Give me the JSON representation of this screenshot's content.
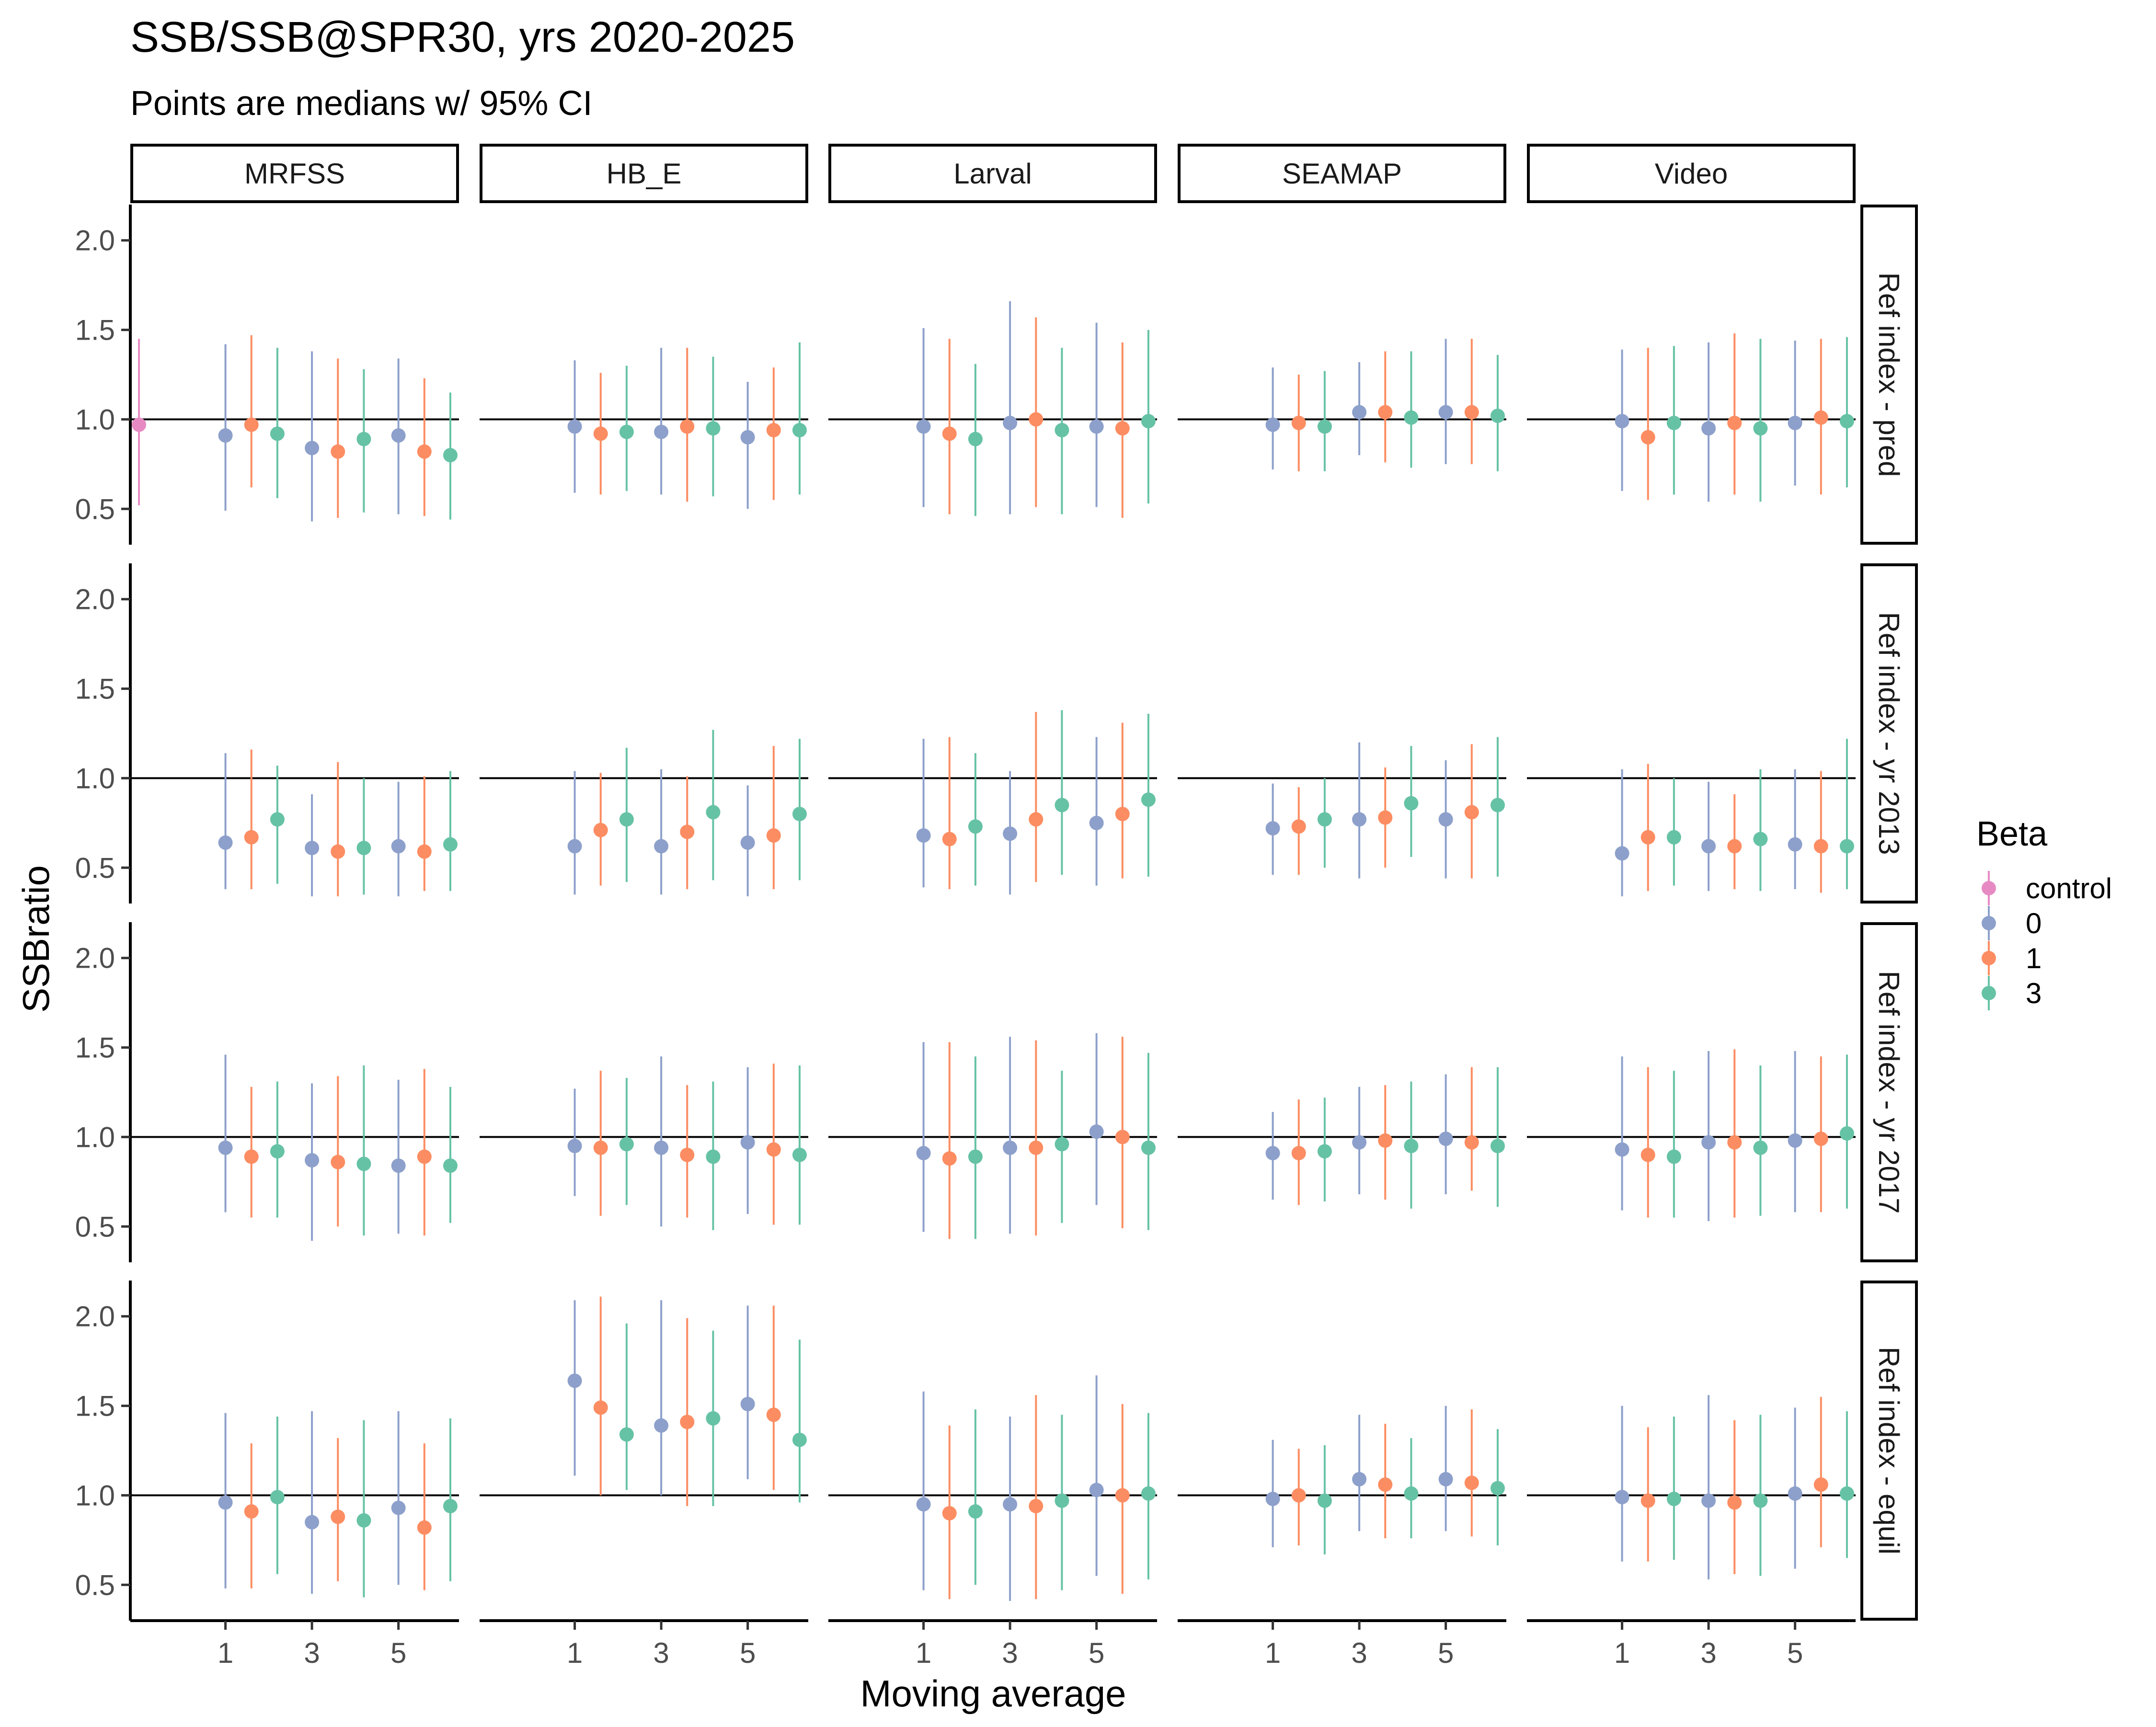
{
  "chart_data": {
    "type": "scatter",
    "title": "SSB/SSB@SPR30, yrs 2020-2025",
    "subtitle": "Points are medians w/ 95% CI",
    "xlabel": "Moving average",
    "ylabel": "SSBratio",
    "x_ticks": [
      "1",
      "3",
      "5"
    ],
    "y_ticks": [
      "0.5",
      "1.0",
      "1.5",
      "2.0"
    ],
    "ylim": [
      0.3,
      2.2
    ],
    "reference_line": 1.0,
    "columns": [
      "MRFSS",
      "HB_E",
      "Larval",
      "SEAMAP",
      "Video"
    ],
    "rows": [
      "Ref index - pred",
      "Ref index - yr 2013",
      "Ref index - yr 2017",
      "Ref index - equil"
    ],
    "legend": {
      "title": "Beta",
      "entries": [
        {
          "label": "control",
          "color": "#E78AC3"
        },
        {
          "label": "0",
          "color": "#8DA0CB"
        },
        {
          "label": "1",
          "color": "#FC8D62"
        },
        {
          "label": "3",
          "color": "#66C2A5"
        }
      ]
    },
    "groups": [
      "control",
      "1-0",
      "1-1",
      "1-3",
      "3-0",
      "3-1",
      "3-3",
      "5-0",
      "5-1",
      "5-3"
    ],
    "panels": [
      [
        {
          "median": [
            0.97,
            0.91,
            0.97,
            0.92,
            0.84,
            0.82,
            0.89,
            0.91,
            0.82,
            0.8
          ],
          "lower": [
            0.52,
            0.49,
            0.62,
            0.56,
            0.43,
            0.45,
            0.48,
            0.47,
            0.46,
            0.44
          ],
          "upper": [
            1.45,
            1.42,
            1.47,
            1.4,
            1.38,
            1.34,
            1.28,
            1.34,
            1.23,
            1.15
          ]
        },
        {
          "median": [
            null,
            0.96,
            0.92,
            0.93,
            0.93,
            0.96,
            0.95,
            0.9,
            0.94,
            0.94
          ],
          "lower": [
            null,
            0.59,
            0.58,
            0.6,
            0.58,
            0.54,
            0.57,
            0.5,
            0.55,
            0.58
          ],
          "upper": [
            null,
            1.33,
            1.26,
            1.3,
            1.4,
            1.4,
            1.35,
            1.21,
            1.29,
            1.43
          ]
        },
        {
          "median": [
            null,
            0.96,
            0.92,
            0.89,
            0.98,
            1.0,
            0.94,
            0.96,
            0.95,
            0.99
          ],
          "lower": [
            null,
            0.51,
            0.47,
            0.46,
            0.47,
            0.51,
            0.47,
            0.51,
            0.45,
            0.53
          ],
          "upper": [
            null,
            1.51,
            1.45,
            1.31,
            1.66,
            1.57,
            1.4,
            1.54,
            1.43,
            1.5
          ]
        },
        {
          "median": [
            null,
            0.97,
            0.98,
            0.96,
            1.04,
            1.04,
            1.01,
            1.04,
            1.04,
            1.02
          ],
          "lower": [
            null,
            0.72,
            0.71,
            0.71,
            0.8,
            0.76,
            0.73,
            0.75,
            0.75,
            0.71
          ],
          "upper": [
            null,
            1.29,
            1.25,
            1.27,
            1.32,
            1.38,
            1.38,
            1.45,
            1.45,
            1.36
          ]
        },
        {
          "median": [
            null,
            0.99,
            0.9,
            0.98,
            0.95,
            0.98,
            0.95,
            0.98,
            1.01,
            0.99
          ],
          "lower": [
            null,
            0.6,
            0.55,
            0.58,
            0.54,
            0.58,
            0.54,
            0.63,
            0.58,
            0.62
          ],
          "upper": [
            null,
            1.39,
            1.4,
            1.41,
            1.43,
            1.48,
            1.45,
            1.44,
            1.45,
            1.46
          ]
        }
      ],
      [
        {
          "median": [
            null,
            0.64,
            0.67,
            0.77,
            0.61,
            0.59,
            0.61,
            0.62,
            0.59,
            0.63
          ],
          "lower": [
            null,
            0.38,
            0.38,
            0.41,
            0.34,
            0.34,
            0.35,
            0.34,
            0.37,
            0.37
          ],
          "upper": [
            null,
            1.14,
            1.16,
            1.07,
            0.91,
            1.09,
            1.0,
            0.98,
            1.01,
            1.04
          ]
        },
        {
          "median": [
            null,
            0.62,
            0.71,
            0.77,
            0.62,
            0.7,
            0.81,
            0.64,
            0.68,
            0.8
          ],
          "lower": [
            null,
            0.35,
            0.4,
            0.42,
            0.35,
            0.38,
            0.43,
            0.34,
            0.38,
            0.43
          ],
          "upper": [
            null,
            1.04,
            1.03,
            1.17,
            1.05,
            1.01,
            1.27,
            0.96,
            1.18,
            1.22
          ]
        },
        {
          "median": [
            null,
            0.68,
            0.66,
            0.73,
            0.69,
            0.77,
            0.85,
            0.75,
            0.8,
            0.88
          ],
          "lower": [
            null,
            0.39,
            0.38,
            0.4,
            0.35,
            0.42,
            0.46,
            0.4,
            0.44,
            0.45
          ],
          "upper": [
            null,
            1.22,
            1.23,
            1.14,
            1.04,
            1.37,
            1.38,
            1.23,
            1.31,
            1.36
          ]
        },
        {
          "median": [
            null,
            0.72,
            0.73,
            0.77,
            0.77,
            0.78,
            0.86,
            0.77,
            0.81,
            0.85
          ],
          "lower": [
            null,
            0.46,
            0.46,
            0.5,
            0.44,
            0.5,
            0.56,
            0.44,
            0.44,
            0.45
          ],
          "upper": [
            null,
            0.97,
            0.95,
            1.0,
            1.2,
            1.06,
            1.18,
            1.1,
            1.19,
            1.23
          ]
        },
        {
          "median": [
            null,
            0.58,
            0.67,
            0.67,
            0.62,
            0.62,
            0.66,
            0.63,
            0.62,
            0.62
          ],
          "lower": [
            null,
            0.34,
            0.37,
            0.4,
            0.37,
            0.38,
            0.37,
            0.38,
            0.36,
            0.38
          ],
          "upper": [
            null,
            1.05,
            1.08,
            1.0,
            0.98,
            0.91,
            1.05,
            1.05,
            1.04,
            1.22
          ]
        }
      ],
      [
        {
          "median": [
            null,
            0.94,
            0.89,
            0.92,
            0.87,
            0.86,
            0.85,
            0.84,
            0.89,
            0.84
          ],
          "lower": [
            null,
            0.58,
            0.55,
            0.55,
            0.42,
            0.5,
            0.45,
            0.46,
            0.45,
            0.52
          ],
          "upper": [
            null,
            1.46,
            1.28,
            1.31,
            1.3,
            1.34,
            1.4,
            1.32,
            1.38,
            1.28
          ]
        },
        {
          "median": [
            null,
            0.95,
            0.94,
            0.96,
            0.94,
            0.9,
            0.89,
            0.97,
            0.93,
            0.9
          ],
          "lower": [
            null,
            0.67,
            0.56,
            0.62,
            0.5,
            0.55,
            0.48,
            0.57,
            0.51,
            0.51
          ],
          "upper": [
            null,
            1.27,
            1.37,
            1.33,
            1.45,
            1.29,
            1.31,
            1.39,
            1.41,
            1.4
          ]
        },
        {
          "median": [
            null,
            0.91,
            0.88,
            0.89,
            0.94,
            0.94,
            0.96,
            1.03,
            1.0,
            0.94
          ],
          "lower": [
            null,
            0.47,
            0.43,
            0.43,
            0.46,
            0.45,
            0.52,
            0.62,
            0.49,
            0.48
          ],
          "upper": [
            null,
            1.53,
            1.53,
            1.45,
            1.56,
            1.54,
            1.37,
            1.58,
            1.56,
            1.47
          ]
        },
        {
          "median": [
            null,
            0.91,
            0.91,
            0.92,
            0.97,
            0.98,
            0.95,
            0.99,
            0.97,
            0.95
          ],
          "lower": [
            null,
            0.65,
            0.62,
            0.64,
            0.68,
            0.65,
            0.6,
            0.68,
            0.7,
            0.61
          ],
          "upper": [
            null,
            1.14,
            1.21,
            1.22,
            1.28,
            1.29,
            1.31,
            1.35,
            1.39,
            1.39
          ]
        },
        {
          "median": [
            null,
            0.93,
            0.9,
            0.89,
            0.97,
            0.97,
            0.94,
            0.98,
            0.99,
            1.02
          ],
          "lower": [
            null,
            0.59,
            0.55,
            0.55,
            0.53,
            0.55,
            0.56,
            0.58,
            0.58,
            0.6
          ],
          "upper": [
            null,
            1.45,
            1.39,
            1.37,
            1.48,
            1.49,
            1.4,
            1.48,
            1.45,
            1.46
          ]
        }
      ],
      [
        {
          "median": [
            null,
            0.96,
            0.91,
            0.99,
            0.85,
            0.88,
            0.86,
            0.93,
            0.82,
            0.94
          ],
          "lower": [
            null,
            0.48,
            0.48,
            0.56,
            0.45,
            0.52,
            0.43,
            0.5,
            0.47,
            0.52
          ],
          "upper": [
            null,
            1.46,
            1.29,
            1.44,
            1.47,
            1.32,
            1.42,
            1.47,
            1.29,
            1.43
          ]
        },
        {
          "median": [
            null,
            1.64,
            1.49,
            1.34,
            1.39,
            1.41,
            1.43,
            1.51,
            1.45,
            1.31
          ],
          "lower": [
            null,
            1.11,
            1.0,
            1.03,
            1.0,
            0.94,
            0.94,
            1.09,
            1.03,
            0.96
          ],
          "upper": [
            null,
            2.09,
            2.11,
            1.96,
            2.09,
            1.99,
            1.92,
            2.06,
            2.06,
            1.87
          ]
        },
        {
          "median": [
            null,
            0.95,
            0.9,
            0.91,
            0.95,
            0.94,
            0.97,
            1.03,
            1.0,
            1.01
          ],
          "lower": [
            null,
            0.47,
            0.42,
            0.5,
            0.41,
            0.42,
            0.47,
            0.55,
            0.45,
            0.53
          ],
          "upper": [
            null,
            1.58,
            1.39,
            1.48,
            1.44,
            1.56,
            1.45,
            1.67,
            1.51,
            1.46
          ]
        },
        {
          "median": [
            null,
            0.98,
            1.0,
            0.97,
            1.09,
            1.06,
            1.01,
            1.09,
            1.07,
            1.04
          ],
          "lower": [
            null,
            0.71,
            0.72,
            0.67,
            0.8,
            0.76,
            0.76,
            0.8,
            0.77,
            0.72
          ],
          "upper": [
            null,
            1.31,
            1.26,
            1.28,
            1.45,
            1.4,
            1.32,
            1.5,
            1.48,
            1.37
          ]
        },
        {
          "median": [
            null,
            0.99,
            0.97,
            0.98,
            0.97,
            0.96,
            0.97,
            1.01,
            1.06,
            1.01
          ],
          "lower": [
            null,
            0.63,
            0.63,
            0.64,
            0.53,
            0.56,
            0.55,
            0.59,
            0.71,
            0.65
          ],
          "upper": [
            null,
            1.5,
            1.38,
            1.44,
            1.56,
            1.42,
            1.45,
            1.49,
            1.55,
            1.47
          ]
        }
      ]
    ]
  }
}
